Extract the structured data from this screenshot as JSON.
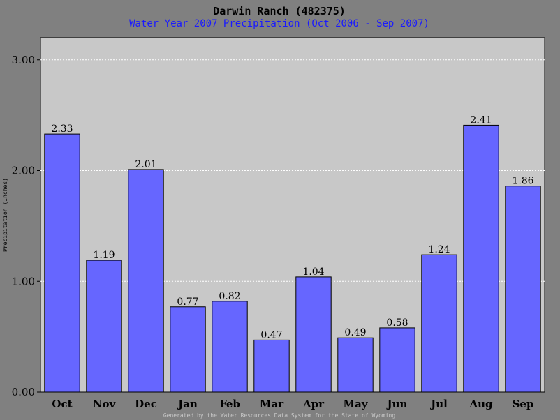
{
  "chart_data": {
    "type": "bar",
    "title": "Darwin Ranch (482375)",
    "subtitle": "Water Year 2007 Precipitation (Oct 2006 - Sep 2007)",
    "ylabel": "Precipitation (Inches)",
    "xlabel": "",
    "footer": "Generated by the Water Resources Data System for the State of Wyoming",
    "categories": [
      "Oct",
      "Nov",
      "Dec",
      "Jan",
      "Feb",
      "Mar",
      "Apr",
      "May",
      "Jun",
      "Jul",
      "Aug",
      "Sep"
    ],
    "values": [
      2.33,
      1.19,
      2.01,
      0.77,
      0.82,
      0.47,
      1.04,
      0.49,
      0.58,
      1.24,
      2.41,
      1.86
    ],
    "data_labels": [
      "2.33",
      "1.19",
      "2.01",
      "0.77",
      "0.82",
      "0.47",
      "1.04",
      "0.49",
      "0.58",
      "1.24",
      "2.41",
      "1.86"
    ],
    "yticks": [
      0,
      1,
      2,
      3
    ],
    "ytick_labels": [
      "0.00",
      "1.00",
      "2.00",
      "3.00"
    ],
    "ylim": [
      0,
      3.2
    ],
    "grid": true,
    "colors": {
      "bar": "#6666ff",
      "plot_background": "#c8c8c8",
      "page_background": "#808080",
      "title": "#000000",
      "subtitle": "#1a1aff",
      "footer": "#c8c8c8",
      "grid": "#ffffff"
    }
  }
}
